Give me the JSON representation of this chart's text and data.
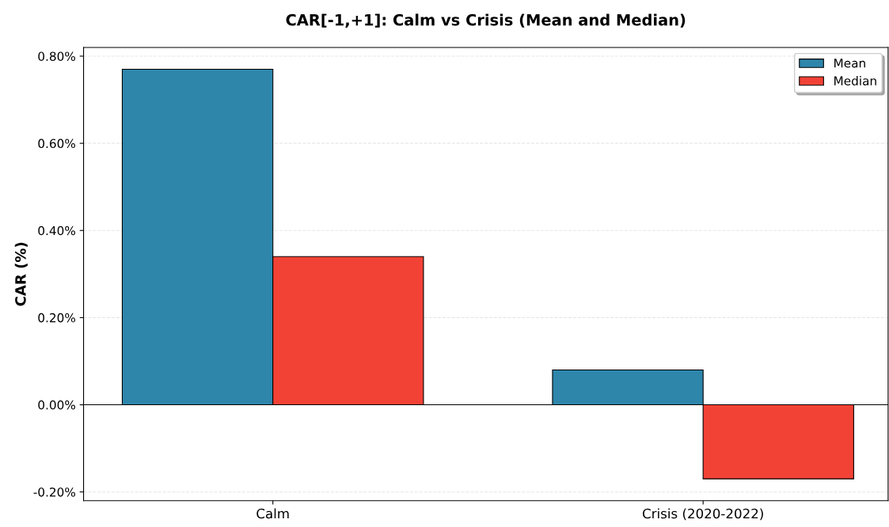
{
  "chart_data": {
    "type": "bar",
    "title": "CAR[-1,+1]: Calm vs Crisis (Mean and Median)",
    "ylabel": "CAR (%)",
    "categories": [
      "Calm",
      "Crisis (2020-2022)"
    ],
    "series": [
      {
        "name": "Mean",
        "color": "#2e86ab",
        "values": [
          0.77,
          0.08
        ]
      },
      {
        "name": "Median",
        "color": "#f24236",
        "values": [
          0.34,
          -0.17
        ]
      }
    ],
    "ylim": [
      -0.22,
      0.82
    ],
    "yticks": [
      {
        "value": -0.2,
        "label": "-0.20%"
      },
      {
        "value": 0,
        "label": "0.00%"
      },
      {
        "value": 0.2,
        "label": "0.20%"
      },
      {
        "value": 0.4,
        "label": "0.40%"
      },
      {
        "value": 0.6,
        "label": "0.60%"
      },
      {
        "value": 0.8,
        "label": "0.80%"
      }
    ],
    "ref_lines": [
      {
        "axis": "y",
        "value": 0,
        "color": "#000000"
      }
    ],
    "grid": "y",
    "legend": "top right"
  }
}
